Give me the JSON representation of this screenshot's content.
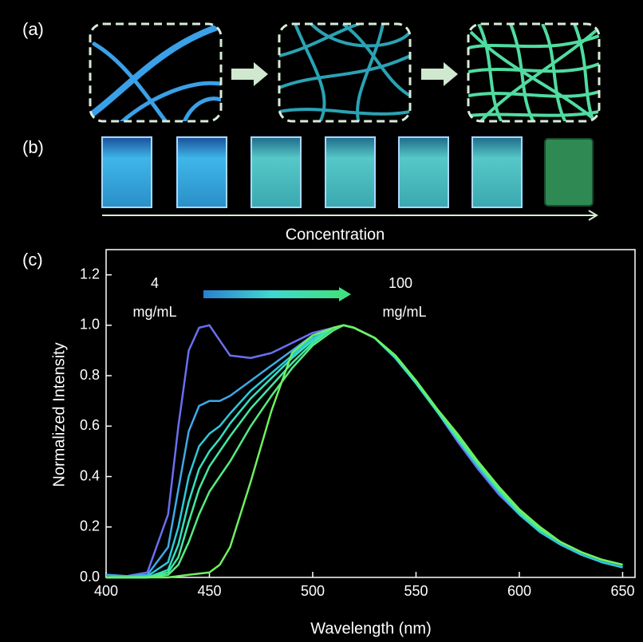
{
  "panel_labels": [
    "(a)",
    "(b)",
    "(c)"
  ],
  "concentration_label": "Concentration",
  "chart_data": {
    "type": "line",
    "xlabel": "Wavelength (nm)",
    "ylabel": "Normalized Intensity",
    "annotations": [
      "4",
      "mg/mL",
      "100",
      "mg/mL"
    ],
    "xlim": [
      400,
      656
    ],
    "ylim": [
      0,
      1.3
    ],
    "xticks": [
      400,
      450,
      500,
      550,
      600,
      650
    ],
    "yticks": [
      {
        "value": 0,
        "label": "0.0"
      },
      0.2,
      0.4,
      0.6,
      0.8,
      {
        "value": 1,
        "label": "1.0"
      },
      1.2
    ],
    "x": [
      400,
      410,
      420,
      430,
      435,
      440,
      445,
      450,
      455,
      460,
      470,
      480,
      490,
      500,
      510,
      515,
      520,
      530,
      540,
      550,
      560,
      570,
      580,
      590,
      600,
      610,
      620,
      630,
      640,
      650
    ],
    "series": [
      {
        "color": "#6b6ff0",
        "values": [
          0.01,
          0.005,
          0.02,
          0.25,
          0.6,
          0.9,
          0.99,
          1.0,
          0.94,
          0.88,
          0.87,
          0.89,
          0.93,
          0.97,
          0.99,
          1.0,
          0.99,
          0.95,
          0.87,
          0.77,
          0.66,
          0.54,
          0.43,
          0.33,
          0.25,
          0.18,
          0.13,
          0.09,
          0.06,
          0.04
        ]
      },
      {
        "color": "#3fa9e8",
        "values": [
          0.01,
          0.005,
          0.01,
          0.12,
          0.35,
          0.58,
          0.68,
          0.7,
          0.7,
          0.72,
          0.78,
          0.84,
          0.9,
          0.96,
          0.99,
          1.0,
          0.99,
          0.95,
          0.87,
          0.77,
          0.66,
          0.55,
          0.44,
          0.34,
          0.25,
          0.18,
          0.13,
          0.09,
          0.06,
          0.04
        ]
      },
      {
        "color": "#2ec9d8",
        "values": [
          0,
          0,
          0.005,
          0.06,
          0.2,
          0.4,
          0.52,
          0.57,
          0.6,
          0.65,
          0.74,
          0.81,
          0.88,
          0.95,
          0.99,
          1.0,
          0.99,
          0.95,
          0.87,
          0.77,
          0.66,
          0.55,
          0.44,
          0.34,
          0.25,
          0.18,
          0.13,
          0.09,
          0.06,
          0.04
        ]
      },
      {
        "color": "#35e0c0",
        "values": [
          0,
          0,
          0,
          0.03,
          0.13,
          0.3,
          0.43,
          0.5,
          0.55,
          0.61,
          0.71,
          0.79,
          0.87,
          0.94,
          0.99,
          1.0,
          0.99,
          0.95,
          0.87,
          0.77,
          0.66,
          0.55,
          0.45,
          0.35,
          0.26,
          0.19,
          0.14,
          0.1,
          0.07,
          0.05
        ]
      },
      {
        "color": "#45e8a0",
        "values": [
          0,
          0,
          0,
          0.02,
          0.08,
          0.22,
          0.35,
          0.44,
          0.5,
          0.56,
          0.67,
          0.76,
          0.85,
          0.93,
          0.99,
          1.0,
          0.99,
          0.95,
          0.88,
          0.78,
          0.67,
          0.56,
          0.45,
          0.35,
          0.26,
          0.19,
          0.14,
          0.1,
          0.07,
          0.05
        ]
      },
      {
        "color": "#55ec80",
        "values": [
          0,
          0,
          0,
          0.01,
          0.05,
          0.14,
          0.25,
          0.34,
          0.4,
          0.46,
          0.6,
          0.72,
          0.83,
          0.92,
          0.98,
          1.0,
          0.99,
          0.95,
          0.88,
          0.78,
          0.67,
          0.56,
          0.45,
          0.35,
          0.26,
          0.19,
          0.14,
          0.1,
          0.07,
          0.05
        ]
      },
      {
        "color": "#70f060",
        "values": [
          0,
          0,
          0,
          0,
          0.005,
          0.01,
          0.015,
          0.02,
          0.05,
          0.12,
          0.38,
          0.66,
          0.89,
          0.96,
          0.99,
          1.0,
          0.99,
          0.95,
          0.88,
          0.78,
          0.67,
          0.57,
          0.46,
          0.36,
          0.27,
          0.2,
          0.14,
          0.1,
          0.07,
          0.05
        ]
      }
    ]
  }
}
